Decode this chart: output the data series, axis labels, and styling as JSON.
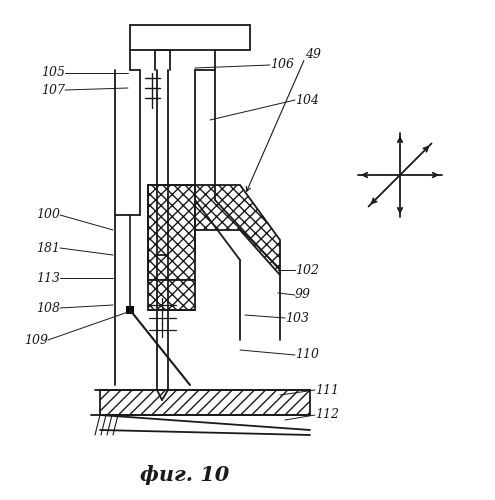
{
  "bg_color": "#ffffff",
  "line_color": "#1a1a1a",
  "title": "фиг. 10",
  "title_fontsize": 15
}
